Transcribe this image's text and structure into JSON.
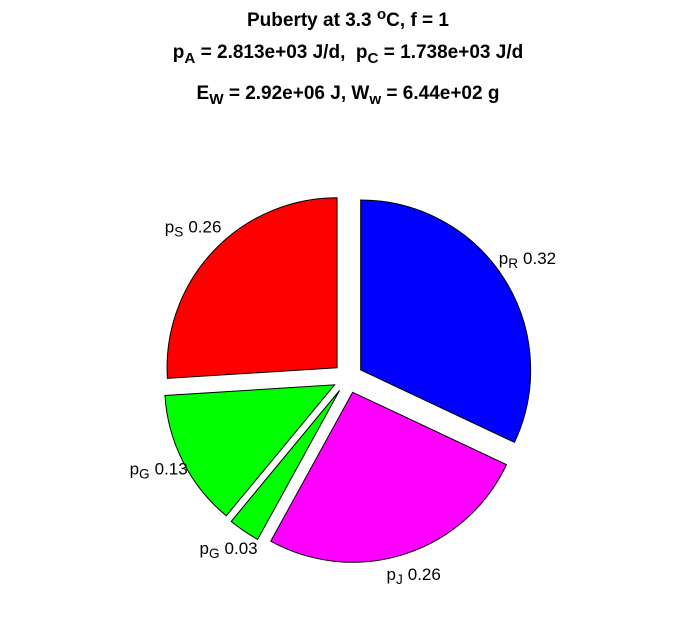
{
  "chart_data": {
    "type": "pie",
    "title": [
      [
        {
          "text": "Puberty at 3.3 "
        },
        {
          "text": "o",
          "script": "sup"
        },
        {
          "text": "C, f = 1"
        }
      ],
      [
        {
          "text": "p"
        },
        {
          "text": "A",
          "script": "sub"
        },
        {
          "text": " = 2.813e+03 J/d,  p"
        },
        {
          "text": "C",
          "script": "sub"
        },
        {
          "text": " = 1.738e+03 J/d"
        }
      ],
      [
        {
          "text": "E"
        },
        {
          "text": "W",
          "script": "sub"
        },
        {
          "text": " = 2.92e+06 J, W"
        },
        {
          "text": "w",
          "script": "sub"
        },
        {
          "text": " = 6.44e+02 g"
        }
      ]
    ],
    "categories": [
      [
        {
          "text": "p"
        },
        {
          "text": "R",
          "script": "sub"
        }
      ],
      [
        {
          "text": "p"
        },
        {
          "text": "J",
          "script": "sub"
        }
      ],
      [
        {
          "text": "p"
        },
        {
          "text": "G",
          "script": "sub"
        }
      ],
      [
        {
          "text": "p"
        },
        {
          "text": "G",
          "script": "sub"
        }
      ],
      [
        {
          "text": "p"
        },
        {
          "text": "S",
          "script": "sub"
        }
      ]
    ],
    "values": [
      0.32,
      0.26,
      0.03,
      0.13,
      0.26
    ],
    "colors": [
      "#0000ff",
      "#ff00ff",
      "#00ff00",
      "#00ff00",
      "#ff0000"
    ]
  }
}
